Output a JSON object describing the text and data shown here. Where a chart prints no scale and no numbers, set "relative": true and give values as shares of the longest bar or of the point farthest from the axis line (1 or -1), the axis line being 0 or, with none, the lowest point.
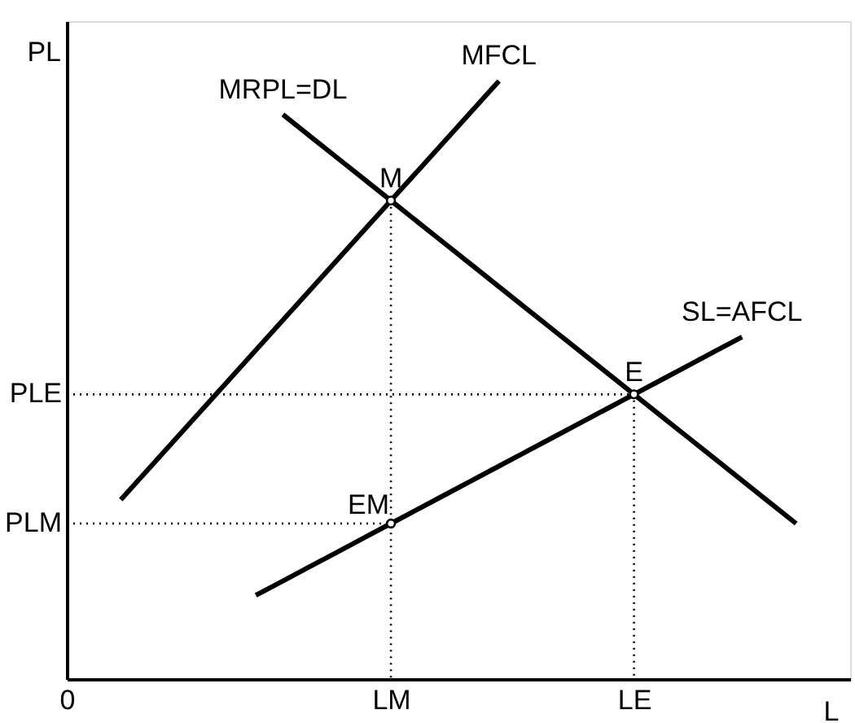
{
  "chart_data": {
    "type": "line",
    "relative": true,
    "xlabel": "L",
    "ylabel": "PL",
    "line_style": "solid",
    "categories": [
      "0",
      null,
      null,
      null,
      null,
      null,
      null,
      null,
      null,
      null,
      null,
      null,
      "LM",
      null,
      null,
      null,
      null,
      null,
      null,
      null,
      null,
      "LE",
      null,
      null,
      null,
      null,
      null,
      null,
      null,
      null
    ],
    "series": [
      {
        "name": "MRPL=DL",
        "color": "#000000",
        "values": [
          null,
          null,
          null,
          null,
          null,
          null,
          null,
          null,
          0.944,
          0.908,
          0.872,
          0.836,
          0.8,
          0.764,
          0.728,
          0.692,
          0.656,
          0.62,
          0.584,
          0.548,
          0.512,
          0.476,
          0.44,
          0.404,
          0.368,
          0.332,
          0.296,
          0.26,
          null,
          null
        ]
      },
      {
        "name": "MFCL",
        "color": "#000000",
        "values": [
          null,
          null,
          0.3,
          0.35,
          0.4,
          0.45,
          0.5,
          0.55,
          0.6,
          0.65,
          0.7,
          0.75,
          0.8,
          0.85,
          0.9,
          0.95,
          1.0,
          null,
          null,
          null,
          null,
          null,
          null,
          null,
          null,
          null,
          null,
          null,
          null,
          null
        ]
      },
      {
        "name": "SL=AFCL",
        "color": "#000000",
        "values": [
          null,
          null,
          null,
          null,
          null,
          null,
          null,
          0.14,
          0.164,
          0.188,
          0.212,
          0.236,
          0.26,
          0.284,
          0.308,
          0.332,
          0.356,
          0.38,
          0.404,
          0.428,
          0.452,
          0.476,
          0.5,
          0.524,
          0.548,
          0.572,
          null,
          null,
          null,
          null
        ]
      },
      {
        "color": "#000000",
        "line_style": "dotted",
        "x": [
          "0",
          "LE",
          "LE"
        ],
        "values": [
          0.476,
          0.476,
          0
        ]
      },
      {
        "color": "#000000",
        "line_style": "dotted",
        "x": [
          "0",
          "LM"
        ],
        "values": [
          0.26,
          0.26
        ]
      },
      {
        "color": "#000000",
        "line_style": "dotted",
        "x": [
          "LM",
          "LM"
        ],
        "values": [
          0.8,
          0
        ]
      },
      {
        "type": "scatter",
        "color": "#000000",
        "marker": "circle",
        "x": [
          "LM",
          "LE",
          "LM"
        ],
        "values": [
          0.8,
          0.476,
          0.26
        ]
      }
    ],
    "annotations": [
      {
        "text": "M",
        "x": "LM",
        "y": 0.8
      },
      {
        "text": "E",
        "x": "LE",
        "y": 0.476
      },
      {
        "text": "EM",
        "x": "LM",
        "y": 0.26
      },
      {
        "text": "PLE",
        "x": "0",
        "y": 0.476
      },
      {
        "text": "PLM",
        "x": "0",
        "y": 0.26
      }
    ]
  }
}
